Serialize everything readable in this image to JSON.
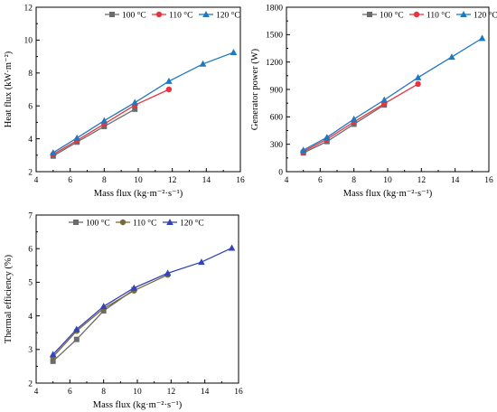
{
  "colors": {
    "series_100": "#6b6b6b",
    "series_110": "#e8343f",
    "series_110_c": "#7a6a3a",
    "series_120": "#1f78c1",
    "series_120_c": "#3244b8"
  },
  "chart_data": [
    {
      "type": "line",
      "title": "",
      "xlabel": "Mass flux (kg·m⁻²·s⁻¹)",
      "ylabel": "Heat flux (kW·m⁻²)",
      "xlim": [
        4,
        16
      ],
      "ylim": [
        2,
        12
      ],
      "xticks": [
        "4",
        "6",
        "8",
        "10",
        "12",
        "14",
        "16"
      ],
      "yticks": [
        "2",
        "4",
        "6",
        "8",
        "10",
        "12"
      ],
      "legend": "top-right",
      "series": [
        {
          "name": "100 °C",
          "marker": "square",
          "color": "#6b6b6b",
          "x": [
            5.0,
            6.4,
            8.0,
            9.8
          ],
          "y": [
            2.95,
            3.8,
            4.75,
            5.8
          ]
        },
        {
          "name": "110 °C",
          "marker": "circle",
          "color": "#e8343f",
          "x": [
            5.0,
            6.4,
            8.0,
            9.8,
            11.8
          ],
          "y": [
            3.05,
            3.9,
            4.9,
            6.05,
            7.0
          ]
        },
        {
          "name": "120 °C",
          "marker": "triangle",
          "color": "#1f78c1",
          "x": [
            5.0,
            6.4,
            8.0,
            9.8,
            11.8,
            13.8,
            15.6
          ],
          "y": [
            3.15,
            4.05,
            5.1,
            6.2,
            7.5,
            8.55,
            9.25
          ]
        }
      ]
    },
    {
      "type": "line",
      "title": "",
      "xlabel": "Mass flux (kg·m⁻²·s⁻¹)",
      "ylabel": "Generator power (W)",
      "xlim": [
        4,
        16
      ],
      "ylim": [
        0,
        1800
      ],
      "xticks": [
        "4",
        "6",
        "8",
        "10",
        "12",
        "14",
        "16"
      ],
      "yticks": [
        "0",
        "300",
        "600",
        "900",
        "1200",
        "1500",
        "1800"
      ],
      "legend": "top-right",
      "series": [
        {
          "name": "100 °C",
          "marker": "square",
          "color": "#6b6b6b",
          "x": [
            5.0,
            6.4,
            8.0,
            9.8
          ],
          "y": [
            205,
            330,
            520,
            730
          ]
        },
        {
          "name": "110 °C",
          "marker": "circle",
          "color": "#e8343f",
          "x": [
            5.0,
            6.4,
            8.0,
            9.8,
            11.8
          ],
          "y": [
            220,
            355,
            545,
            745,
            960
          ]
        },
        {
          "name": "120 °C",
          "marker": "triangle",
          "color": "#1f78c1",
          "x": [
            5.0,
            6.4,
            8.0,
            9.8,
            11.8,
            13.8,
            15.6
          ],
          "y": [
            235,
            375,
            575,
            785,
            1030,
            1255,
            1460
          ]
        }
      ]
    },
    {
      "type": "line",
      "title": "",
      "xlabel": "Mass flux (kg·m⁻²·s⁻¹)",
      "ylabel": "Thermal efficiency (%)",
      "xlim": [
        4,
        16
      ],
      "ylim": [
        2,
        7
      ],
      "xticks": [
        "4",
        "6",
        "8",
        "10",
        "12",
        "14",
        "16"
      ],
      "yticks": [
        "2",
        "3",
        "4",
        "5",
        "6",
        "7"
      ],
      "legend": "top-left",
      "series": [
        {
          "name": "100 °C",
          "marker": "square",
          "color": "#6b6b6b",
          "x": [
            5.0,
            6.4,
            8.0,
            9.8
          ],
          "y": [
            2.65,
            3.3,
            4.15,
            4.78
          ]
        },
        {
          "name": "110 °C",
          "marker": "circle",
          "color": "#7a6a3a",
          "x": [
            5.0,
            6.4,
            8.0,
            9.8,
            11.8
          ],
          "y": [
            2.78,
            3.55,
            4.22,
            4.75,
            5.22
          ]
        },
        {
          "name": "120 °C",
          "marker": "triangle",
          "color": "#3244b8",
          "x": [
            5.0,
            6.4,
            8.0,
            9.8,
            11.8,
            13.8,
            15.6
          ],
          "y": [
            2.85,
            3.6,
            4.28,
            4.83,
            5.27,
            5.6,
            6.02
          ]
        }
      ]
    }
  ]
}
